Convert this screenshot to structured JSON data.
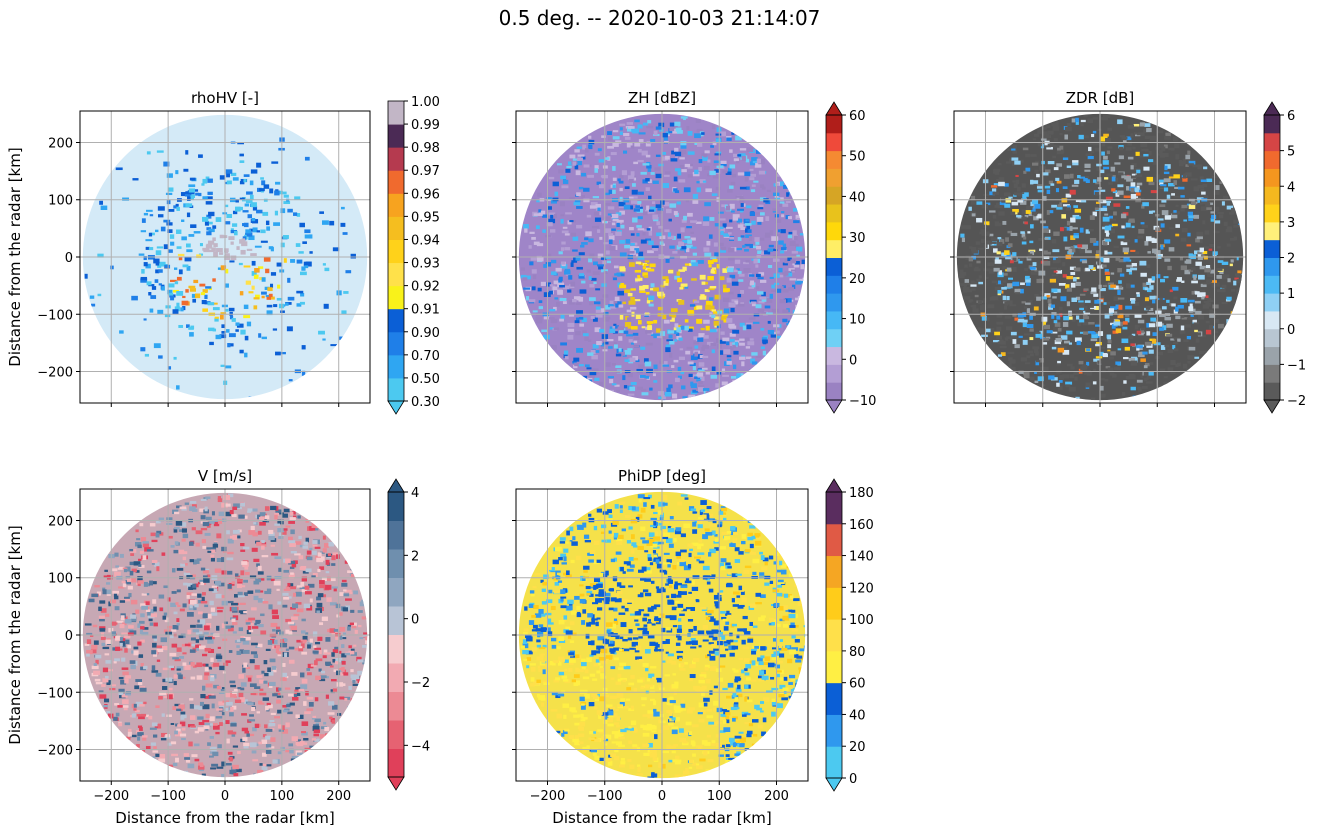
{
  "title": "0.5 deg. -- 2020-10-03 21:14:07",
  "colors": {
    "circle_background": "#d4eaf7",
    "grid": "#b0b0b0"
  },
  "chart_data": [
    {
      "type": "heatmap",
      "title": "rhoHV [-]",
      "xlabel": "",
      "ylabel": "Distance from the radar [km]",
      "xlim": [
        -255,
        255
      ],
      "ylim": [
        -255,
        255
      ],
      "xticks": [],
      "yticks": [
        -200,
        -100,
        0,
        100,
        200
      ],
      "grid": true,
      "colorbar": {
        "ticks": [
          "0.30",
          "0.50",
          "0.70",
          "0.90",
          "0.91",
          "0.92",
          "0.93",
          "0.94",
          "0.95",
          "0.96",
          "0.97",
          "0.98",
          "0.99",
          "1.00"
        ],
        "colors": [
          "#4cc9f0",
          "#2fa6f2",
          "#1f7fe8",
          "#0b5fd6",
          "#f9f21a",
          "#ffe14a",
          "#ffd21a",
          "#f5be1f",
          "#f7a31f",
          "#f06a2e",
          "#b53a4f",
          "#4b2a55",
          "#c2b6c6"
        ],
        "extend_min": true,
        "extend_max": false
      },
      "background": "#d4eaf7"
    },
    {
      "type": "heatmap",
      "title": "ZH [dBZ]",
      "xlabel": "",
      "ylabel": "",
      "xlim": [
        -255,
        255
      ],
      "ylim": [
        -255,
        255
      ],
      "xticks": [],
      "yticks": [],
      "grid": true,
      "colorbar": {
        "ticks": [
          "−10",
          "0",
          "10",
          "20",
          "30",
          "40",
          "50",
          "60"
        ],
        "tick_positions": [
          0,
          2,
          4,
          6,
          8,
          10,
          12,
          14
        ],
        "colors": [
          "#9a82c2",
          "#b39ed4",
          "#c9b8e0",
          "#6fd0f5",
          "#46b8f5",
          "#2f98ee",
          "#1f7fe8",
          "#0b5fd6",
          "#ffee66",
          "#ffd80a",
          "#e8c21c",
          "#d6a525",
          "#f0a030",
          "#f58a32",
          "#ef4a3a",
          "#b01e1a"
        ],
        "extend_min": true,
        "extend_max": true
      },
      "background": "#9f85c8"
    },
    {
      "type": "heatmap",
      "title": "ZDR [dB]",
      "xlabel": "",
      "ylabel": "",
      "xlim": [
        -255,
        255
      ],
      "ylim": [
        -255,
        255
      ],
      "xticks": [],
      "yticks": [],
      "grid": true,
      "colorbar": {
        "ticks": [
          "−2",
          "−1",
          "0",
          "1",
          "2",
          "3",
          "4",
          "5",
          "6"
        ],
        "tick_positions": [
          0,
          2,
          4,
          6,
          8,
          10,
          12,
          14,
          16
        ],
        "colors": [
          "#5a5a5a",
          "#7a7a7a",
          "#9aa3aa",
          "#b8c6d2",
          "#d8e8f4",
          "#8fd0f5",
          "#4cbaf5",
          "#2f98ee",
          "#0b5fd6",
          "#fff07a",
          "#ffd21a",
          "#f5b81f",
          "#f5961f",
          "#f06a2e",
          "#d54545",
          "#4b2a55"
        ],
        "extend_min": true,
        "extend_max": true
      },
      "background": "#555555"
    },
    {
      "type": "heatmap",
      "title": "V [m/s]",
      "xlabel": "Distance from the radar [km]",
      "ylabel": "Distance from the radar [km]",
      "xlim": [
        -255,
        255
      ],
      "ylim": [
        -255,
        255
      ],
      "xticks": [
        -200,
        -100,
        0,
        100,
        200
      ],
      "yticks": [
        -200,
        -100,
        0,
        100,
        200
      ],
      "grid": true,
      "colorbar": {
        "ticks": [
          "−4",
          "−2",
          "0",
          "2",
          "4"
        ],
        "tick_positions": [
          1,
          3,
          5,
          7,
          9
        ],
        "colors": [
          "#e0405a",
          "#e66272",
          "#ec8a94",
          "#f2aab2",
          "#f6cccf",
          "#b8c4d6",
          "#8fa6c0",
          "#6f8fae",
          "#4f7399",
          "#2c5882"
        ],
        "extend_min": true,
        "extend_max": true
      },
      "background": "#c7a8b4"
    },
    {
      "type": "heatmap",
      "title": "PhiDP [deg]",
      "xlabel": "Distance from the radar [km]",
      "ylabel": "",
      "xlim": [
        -255,
        255
      ],
      "ylim": [
        -255,
        255
      ],
      "xticks": [
        -200,
        -100,
        0,
        100,
        200
      ],
      "yticks": [],
      "grid": true,
      "colorbar": {
        "ticks": [
          "0",
          "20",
          "40",
          "60",
          "80",
          "100",
          "120",
          "140",
          "160",
          "180"
        ],
        "tick_positions": [
          0,
          1,
          2,
          3,
          4,
          5,
          6,
          7,
          8,
          9
        ],
        "colors": [
          "#4cc9f0",
          "#2f98ee",
          "#0b5fd6",
          "#ffef44",
          "#ffe04a",
          "#ffcc1a",
          "#f5a623",
          "#e05a45",
          "#5a2d5f"
        ],
        "extend_min": true,
        "extend_max": true
      },
      "background": "#f5e14a"
    }
  ]
}
